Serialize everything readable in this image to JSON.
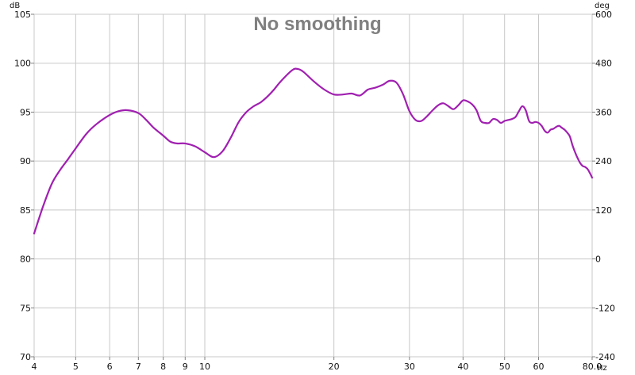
{
  "chart_data": {
    "type": "line",
    "title": "No smoothing",
    "xlabel": "Hz",
    "ylabel": "dB",
    "y2label": "deg",
    "x_scale": "log",
    "xlim": [
      4,
      80
    ],
    "ylim": [
      70,
      105
    ],
    "y2lim": [
      -240,
      600
    ],
    "grid": true,
    "legend": "none",
    "line_color": "#a020b0",
    "x_ticks": [
      4,
      5,
      6,
      7,
      8,
      9,
      10,
      20,
      30,
      40,
      50,
      60,
      80
    ],
    "x_tick_labels": [
      "4",
      "5",
      "6",
      "7",
      "8",
      "9",
      "10",
      "20",
      "30",
      "40",
      "50",
      "60",
      "80.0"
    ],
    "y_ticks": [
      70,
      75,
      80,
      85,
      90,
      95,
      100,
      105
    ],
    "y2_ticks": [
      -240,
      -120,
      0,
      120,
      240,
      360,
      480,
      600
    ],
    "series": [
      {
        "x": [
          4.0,
          4.2,
          4.4,
          4.6,
          4.8,
          5.0,
          5.3,
          5.6,
          6.0,
          6.3,
          6.6,
          7.0,
          7.3,
          7.6,
          8.0,
          8.3,
          8.6,
          9.0,
          9.5,
          10.0,
          10.5,
          11.0,
          11.5,
          12.0,
          12.5,
          13.0,
          13.5,
          14.0,
          14.5,
          15.0,
          16.0,
          16.5,
          17.0,
          18.0,
          19.0,
          20.0,
          21.0,
          22.0,
          23.0,
          24.0,
          25.0,
          26.0,
          27.0,
          28.0,
          29.0,
          30.0,
          31.0,
          32.0,
          33.0,
          34.0,
          35.0,
          36.0,
          37.0,
          38.0,
          39.0,
          40.0,
          41.0,
          42.0,
          43.0,
          44.0,
          45.0,
          46.0,
          47.0,
          48.0,
          49.0,
          50.0,
          51.0,
          52.0,
          53.0,
          54.0,
          55.0,
          56.0,
          57.0,
          58.0,
          59.0,
          60.0,
          61.0,
          62.0,
          63.0,
          64.0,
          65.0,
          66.0,
          67.0,
          68.0,
          69.0,
          70.0,
          71.0,
          72.0,
          73.0,
          74.0,
          75.0,
          76.0,
          77.0,
          78.0,
          79.0,
          80.0
        ],
        "y": [
          82.6,
          85.4,
          87.7,
          89.1,
          90.2,
          91.3,
          92.8,
          93.8,
          94.7,
          95.1,
          95.2,
          94.9,
          94.2,
          93.4,
          92.6,
          92.0,
          91.8,
          91.8,
          91.5,
          90.9,
          90.4,
          91.0,
          92.4,
          94.0,
          95.0,
          95.6,
          96.0,
          96.6,
          97.3,
          98.1,
          99.3,
          99.4,
          99.1,
          98.1,
          97.3,
          96.8,
          96.8,
          96.9,
          96.7,
          97.3,
          97.5,
          97.8,
          98.2,
          98.0,
          96.8,
          95.1,
          94.2,
          94.1,
          94.6,
          95.2,
          95.7,
          95.9,
          95.6,
          95.3,
          95.7,
          96.2,
          96.1,
          95.8,
          95.2,
          94.1,
          93.9,
          93.9,
          94.3,
          94.2,
          93.9,
          94.1,
          94.2,
          94.3,
          94.5,
          95.1,
          95.6,
          95.2,
          94.1,
          93.9,
          94.0,
          93.9,
          93.6,
          93.1,
          92.9,
          93.2,
          93.3,
          93.5,
          93.6,
          93.4,
          93.2,
          92.9,
          92.5,
          91.6,
          90.9,
          90.3,
          89.8,
          89.5,
          89.4,
          89.2,
          88.8,
          88.3
        ]
      }
    ]
  }
}
